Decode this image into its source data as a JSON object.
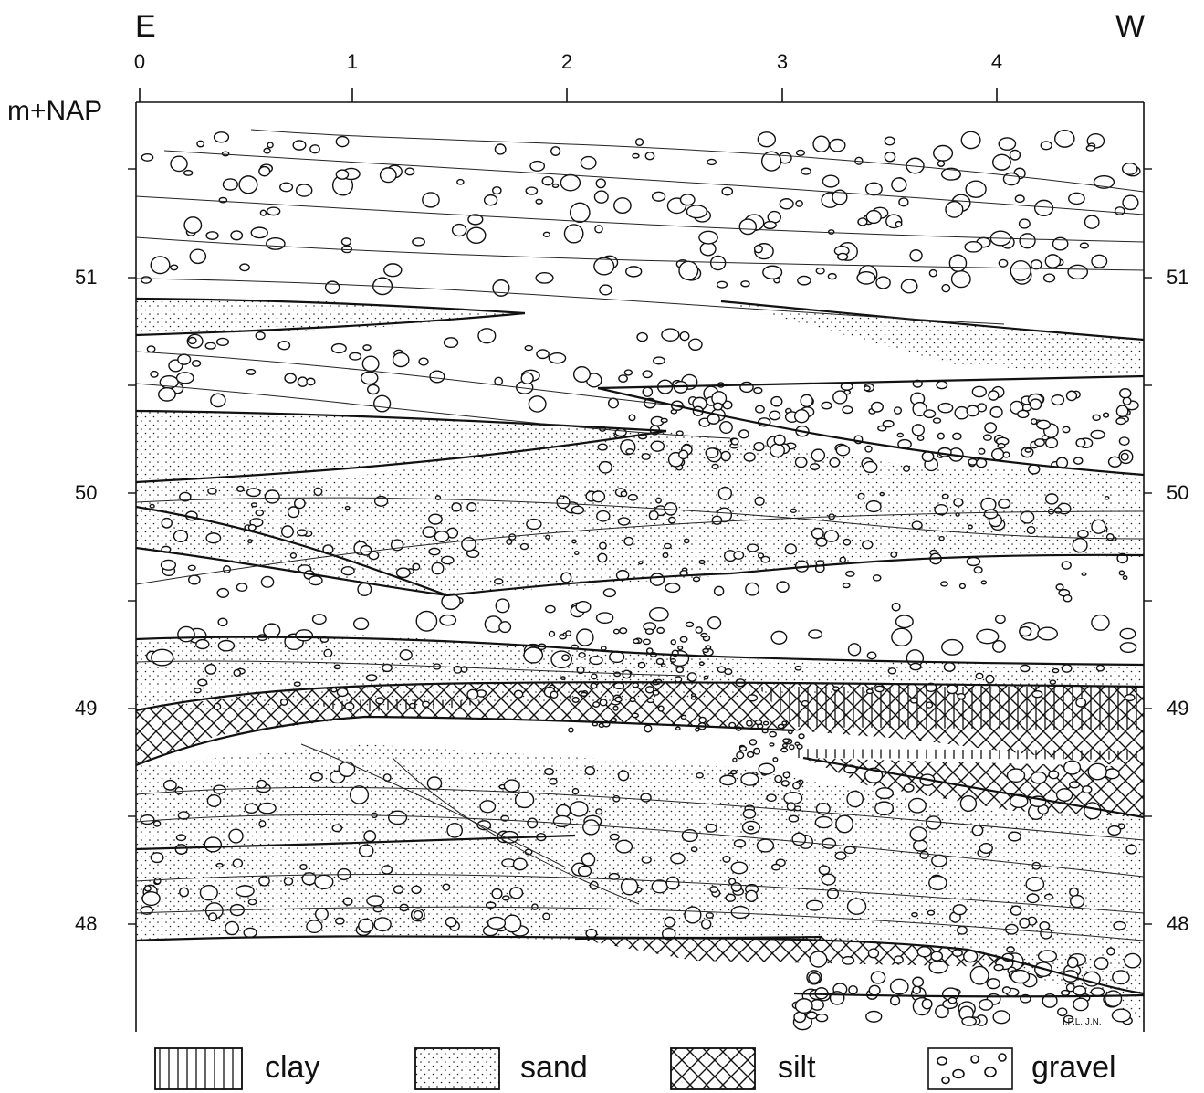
{
  "direction_left": "E",
  "direction_right": "W",
  "y_unit": "m+NAP",
  "x_ticks": [
    "0",
    "1",
    "2",
    "3",
    "4"
  ],
  "y_ticks": [
    "51",
    "50",
    "49",
    "48"
  ],
  "credits": "I.P.L.   J.N.",
  "legend": [
    {
      "key": "clay",
      "label": "clay",
      "pattern": "vertical-lines-icon"
    },
    {
      "key": "sand",
      "label": "sand",
      "pattern": "dots-icon"
    },
    {
      "key": "silt",
      "label": "silt",
      "pattern": "crosshatch-icon"
    },
    {
      "key": "gravel",
      "label": "gravel",
      "pattern": "pebbles-icon"
    }
  ],
  "colors": {
    "ink": "#111111",
    "paper": "#ffffff"
  }
}
